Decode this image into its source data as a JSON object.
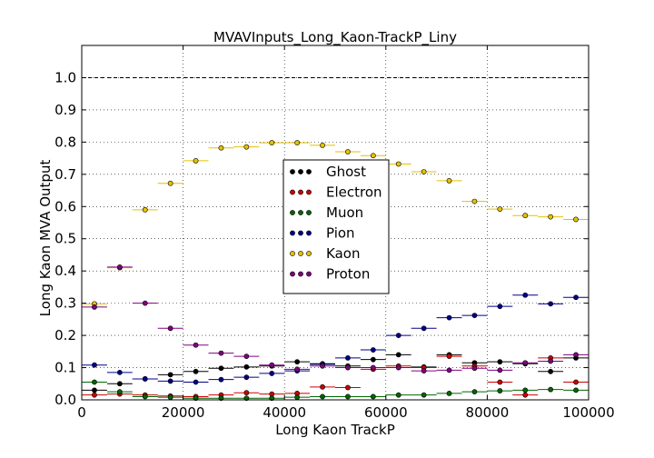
{
  "chart_data": {
    "type": "scatter",
    "title": "MVAVInputs_Long_Kaon-TrackP_Liny",
    "xlabel": "Long Kaon TrackP",
    "ylabel": "Long Kaon MVA Output",
    "xlim": [
      0,
      100000
    ],
    "ylim": [
      0.0,
      1.1
    ],
    "x_ticks": [
      "0",
      "20000",
      "40000",
      "60000",
      "80000",
      "100000"
    ],
    "y_ticks": [
      "0.0",
      "0.1",
      "0.2",
      "0.3",
      "0.4",
      "0.5",
      "0.6",
      "0.7",
      "0.8",
      "0.9",
      "1.0"
    ],
    "grid": true,
    "reference_line": 1.0,
    "bin_half_width": 2500,
    "x": [
      2500,
      7500,
      12500,
      17500,
      22500,
      27500,
      32500,
      37500,
      42500,
      47500,
      52500,
      57500,
      62500,
      67500,
      72500,
      77500,
      82500,
      87500,
      92500,
      97500
    ],
    "legend_position": "center",
    "series": [
      {
        "name": "Ghost",
        "color": "#000000",
        "values": [
          0.03,
          0.05,
          0.065,
          0.078,
          0.088,
          0.098,
          0.102,
          0.105,
          0.118,
          0.112,
          0.105,
          0.125,
          0.14,
          0.102,
          0.14,
          0.115,
          0.118,
          0.112,
          0.088,
          0.13
        ]
      },
      {
        "name": "Electron",
        "color": "#cc0000",
        "values": [
          0.015,
          0.018,
          0.015,
          0.012,
          0.01,
          0.015,
          0.022,
          0.018,
          0.02,
          0.04,
          0.038,
          0.095,
          0.105,
          0.1,
          0.135,
          0.105,
          0.055,
          0.015,
          0.13,
          0.055
        ]
      },
      {
        "name": "Muon",
        "color": "#006400",
        "values": [
          0.055,
          0.025,
          0.01,
          0.008,
          0.005,
          0.005,
          0.005,
          0.005,
          0.008,
          0.01,
          0.01,
          0.01,
          0.015,
          0.015,
          0.02,
          0.025,
          0.028,
          0.03,
          0.032,
          0.03
        ]
      },
      {
        "name": "Pion",
        "color": "#00008b",
        "values": [
          0.108,
          0.085,
          0.065,
          0.058,
          0.055,
          0.063,
          0.07,
          0.082,
          0.09,
          0.11,
          0.13,
          0.155,
          0.2,
          0.222,
          0.255,
          0.262,
          0.29,
          0.325,
          0.298,
          0.318
        ]
      },
      {
        "name": "Kaon",
        "color": "#e5c100",
        "values": [
          0.298,
          0.41,
          0.59,
          0.672,
          0.742,
          0.782,
          0.785,
          0.798,
          0.798,
          0.79,
          0.77,
          0.758,
          0.732,
          0.708,
          0.68,
          0.616,
          0.592,
          0.572,
          0.568,
          0.56
        ]
      },
      {
        "name": "Proton",
        "color": "#800080",
        "values": [
          0.288,
          0.412,
          0.3,
          0.222,
          0.17,
          0.145,
          0.135,
          0.108,
          0.095,
          0.105,
          0.1,
          0.1,
          0.1,
          0.09,
          0.092,
          0.098,
          0.092,
          0.115,
          0.12,
          0.14
        ]
      }
    ]
  }
}
